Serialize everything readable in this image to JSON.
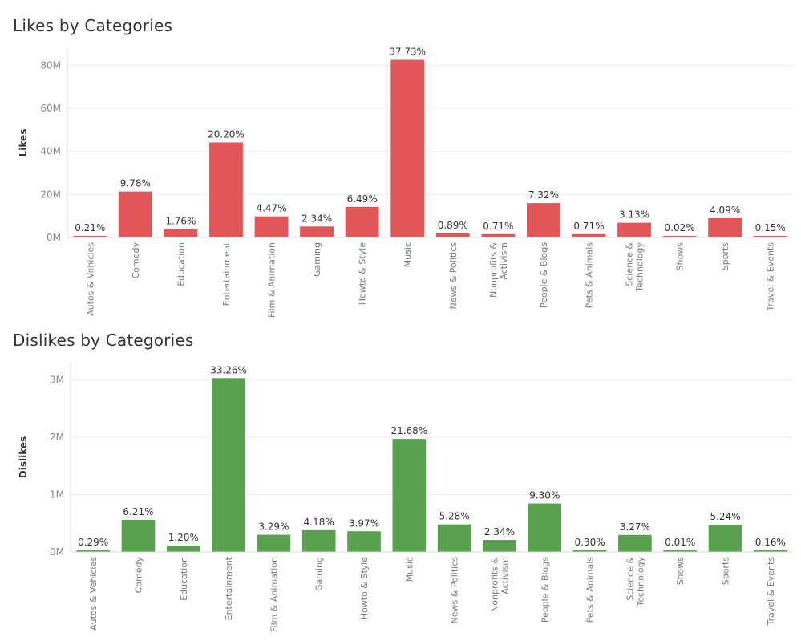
{
  "chart_data": [
    {
      "type": "bar",
      "title": "Likes by Categories",
      "ylabel": "Likes",
      "xlabel": "",
      "ylim": [
        0,
        88000000
      ],
      "yticks": [
        0,
        20000000,
        40000000,
        60000000,
        80000000
      ],
      "ytick_labels": [
        "0M",
        "20M",
        "40M",
        "60M",
        "80M"
      ],
      "grid": true,
      "color": "#e15759",
      "categories": [
        "Autos & Vehicles",
        "Comedy",
        "Education",
        "Entertainment",
        "Film & Animation",
        "Gaming",
        "Howto & Style",
        "Music",
        "News & Politics",
        "Nonprofits & Activism",
        "People & Blogs",
        "Pets & Animals",
        "Science & Technology",
        "Shows",
        "Sports",
        "Travel & Events"
      ],
      "values": [
        460000,
        21400000,
        3850000,
        44200000,
        9800000,
        5100000,
        14200000,
        82600000,
        1950000,
        1550000,
        16000000,
        1550000,
        6850000,
        40000,
        8950000,
        330000
      ],
      "labels": [
        "0.21%",
        "9.78%",
        "1.76%",
        "20.20%",
        "4.47%",
        "2.34%",
        "6.49%",
        "37.73%",
        "0.89%",
        "0.71%",
        "7.32%",
        "0.71%",
        "3.13%",
        "0.02%",
        "4.09%",
        "0.15%"
      ]
    },
    {
      "type": "bar",
      "title": "Dislikes by Categories",
      "ylabel": "Dislikes",
      "xlabel": "",
      "ylim": [
        0,
        3300000
      ],
      "yticks": [
        0,
        1000000,
        2000000,
        3000000
      ],
      "ytick_labels": [
        "0M",
        "1M",
        "2M",
        "3M"
      ],
      "grid": true,
      "color": "#59a14f",
      "categories": [
        "Autos & Vehicles",
        "Comedy",
        "Education",
        "Entertainment",
        "Film & Animation",
        "Gaming",
        "Howto & Style",
        "Music",
        "News & Politics",
        "Nonprofits & Activism",
        "People & Blogs",
        "Pets & Animals",
        "Science & Technology",
        "Shows",
        "Sports",
        "Travel & Events"
      ],
      "values": [
        26000,
        560000,
        110000,
        3030000,
        300000,
        380000,
        360000,
        1970000,
        480000,
        210000,
        845000,
        27000,
        297000,
        1000,
        476000,
        15000
      ],
      "labels": [
        "0.29%",
        "6.21%",
        "1.20%",
        "33.26%",
        "3.29%",
        "4.18%",
        "3.97%",
        "21.68%",
        "5.28%",
        "2.34%",
        "9.30%",
        "0.30%",
        "3.27%",
        "0.01%",
        "5.24%",
        "0.16%"
      ]
    }
  ]
}
